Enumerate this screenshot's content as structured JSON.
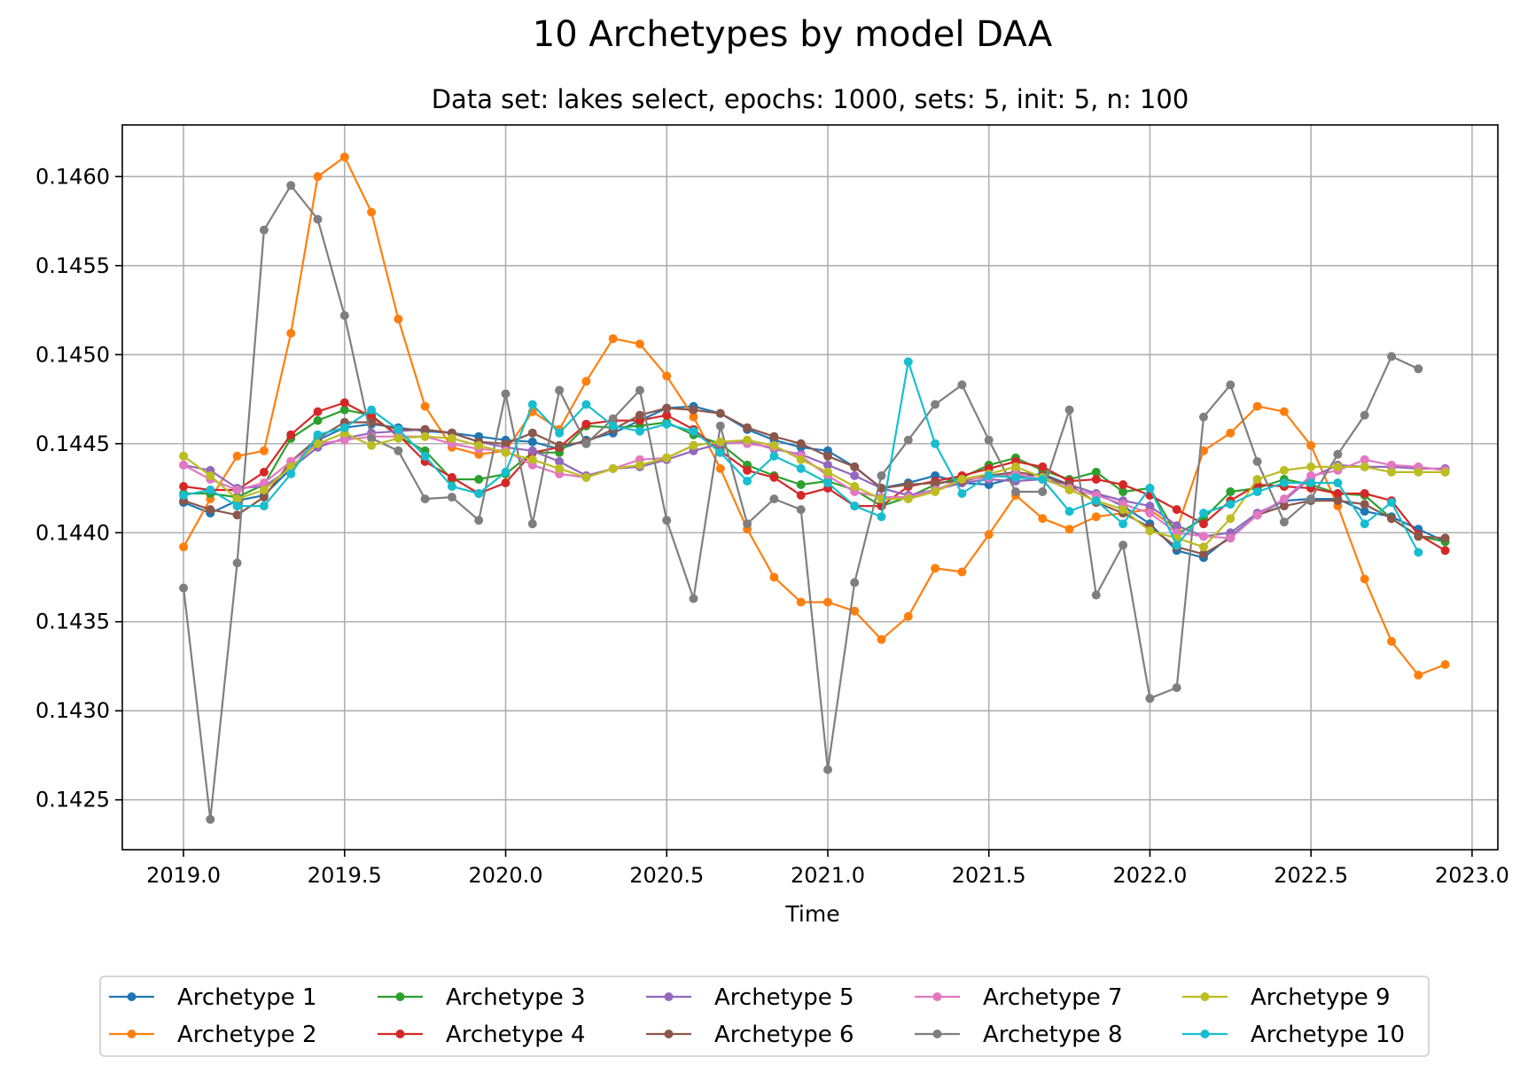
{
  "chart_data": {
    "type": "line",
    "title": "10 Archetypes by model DAA",
    "subtitle": "Data set: lakes select, epochs: 1000, sets: 5, init: 5, n: 100",
    "xlabel": "Time",
    "ylabel": "",
    "xlim": [
      2018.81,
      2023.08
    ],
    "ylim": [
      0.14222,
      0.14629
    ],
    "xticks": [
      2019.0,
      2019.5,
      2020.0,
      2020.5,
      2021.0,
      2021.5,
      2022.0,
      2022.5,
      2023.0
    ],
    "xtick_labels": [
      "2019.0",
      "2019.5",
      "2020.0",
      "2020.5",
      "2021.0",
      "2021.5",
      "2022.0",
      "2022.5",
      "2023.0"
    ],
    "yticks": [
      0.1425,
      0.143,
      0.1435,
      0.144,
      0.1445,
      0.145,
      0.1455,
      0.146
    ],
    "ytick_labels": [
      "0.1425",
      "0.1430",
      "0.1435",
      "0.1440",
      "0.1445",
      "0.1450",
      "0.1455",
      "0.1460"
    ],
    "grid": true,
    "legend_position": "bottom-center",
    "legend_columns": 5,
    "x_start": 2019.0,
    "x_step": 0.08333,
    "series": [
      {
        "name": "Archetype 1",
        "color": "#1f77b4",
        "values": [
          0.14417,
          0.14411,
          0.14418,
          0.14421,
          0.14436,
          0.14452,
          0.14459,
          0.14461,
          0.14459,
          0.14457,
          0.14456,
          0.14454,
          0.14452,
          0.14451,
          0.14447,
          0.14452,
          0.14456,
          0.14463,
          0.1447,
          0.14471,
          0.14467,
          0.14458,
          0.14452,
          0.14448,
          0.14446,
          0.14437,
          0.14425,
          0.14428,
          0.14432,
          0.14428,
          0.14427,
          0.14431,
          0.14433,
          0.14427,
          0.14422,
          0.14415,
          0.14405,
          0.1439,
          0.14386,
          0.14398,
          0.1441,
          0.14418,
          0.14419,
          0.14419,
          0.14412,
          0.14409,
          0.14402,
          0.14395
        ]
      },
      {
        "name": "Archetype 2",
        "color": "#ff7f0e",
        "values": [
          0.14392,
          0.14419,
          0.14443,
          0.14446,
          0.14512,
          0.146,
          0.14611,
          0.1458,
          0.1452,
          0.14471,
          0.14448,
          0.14444,
          0.14446,
          0.14468,
          0.14458,
          0.14485,
          0.14509,
          0.14506,
          0.14488,
          0.14465,
          0.14436,
          0.14402,
          0.14375,
          0.14361,
          0.14361,
          0.14356,
          0.1434,
          0.14353,
          0.1438,
          0.14378,
          0.14399,
          0.14421,
          0.14408,
          0.14402,
          0.14409,
          0.14411,
          0.14413,
          0.14402,
          0.14446,
          0.14456,
          0.14471,
          0.14468,
          0.14449,
          0.14415,
          0.14374,
          0.14339,
          0.1432,
          0.14326
        ]
      },
      {
        "name": "Archetype 3",
        "color": "#2ca02c",
        "values": [
          0.14422,
          0.14422,
          0.1442,
          0.14427,
          0.14453,
          0.14463,
          0.14469,
          0.14466,
          0.14454,
          0.14446,
          0.1443,
          0.1443,
          0.14433,
          0.14445,
          0.14445,
          0.1446,
          0.14459,
          0.1446,
          0.14462,
          0.14455,
          0.1445,
          0.14438,
          0.14432,
          0.14427,
          0.14429,
          0.14424,
          0.14415,
          0.1442,
          0.14427,
          0.14431,
          0.14438,
          0.14442,
          0.14435,
          0.1443,
          0.14434,
          0.14423,
          0.14425,
          0.14399,
          0.14408,
          0.14423,
          0.14425,
          0.1443,
          0.14427,
          0.14422,
          0.14421,
          0.14408,
          0.14398,
          0.14395
        ]
      },
      {
        "name": "Archetype 4",
        "color": "#d62728",
        "values": [
          0.14426,
          0.14424,
          0.14424,
          0.14434,
          0.14455,
          0.14468,
          0.14473,
          0.14465,
          0.14455,
          0.1444,
          0.14431,
          0.14422,
          0.14428,
          0.14445,
          0.14448,
          0.14461,
          0.14463,
          0.14463,
          0.14466,
          0.14458,
          0.14446,
          0.14435,
          0.14431,
          0.14421,
          0.14425,
          0.14415,
          0.14415,
          0.14426,
          0.14429,
          0.14432,
          0.14436,
          0.1444,
          0.14437,
          0.14429,
          0.1443,
          0.14427,
          0.14421,
          0.14413,
          0.14405,
          0.14418,
          0.14427,
          0.14426,
          0.14425,
          0.14422,
          0.14422,
          0.14418,
          0.14399,
          0.1439
        ]
      },
      {
        "name": "Archetype 5",
        "color": "#9467bd",
        "values": [
          0.14438,
          0.14435,
          0.14425,
          0.14426,
          0.14436,
          0.14448,
          0.14453,
          0.14456,
          0.14457,
          0.14458,
          0.14456,
          0.14451,
          0.14448,
          0.14446,
          0.1444,
          0.14432,
          0.14436,
          0.14437,
          0.14441,
          0.14446,
          0.1445,
          0.14451,
          0.14447,
          0.14444,
          0.14438,
          0.14432,
          0.14425,
          0.14421,
          0.14424,
          0.14428,
          0.1443,
          0.14429,
          0.1443,
          0.14427,
          0.14422,
          0.14418,
          0.14415,
          0.14404,
          0.14398,
          0.144,
          0.14411,
          0.14418,
          0.14431,
          0.14438,
          0.14437,
          0.14437,
          0.14436,
          0.14436
        ]
      },
      {
        "name": "Archetype 6",
        "color": "#8c564b",
        "values": [
          0.14418,
          0.14413,
          0.1441,
          0.1442,
          0.1444,
          0.14453,
          0.14462,
          0.14462,
          0.14458,
          0.14458,
          0.14456,
          0.14451,
          0.1445,
          0.14456,
          0.14449,
          0.14451,
          0.14458,
          0.14466,
          0.1447,
          0.14469,
          0.14467,
          0.14459,
          0.14454,
          0.1445,
          0.14443,
          0.14437,
          0.14425,
          0.14427,
          0.14428,
          0.14429,
          0.14432,
          0.14434,
          0.14432,
          0.14427,
          0.14417,
          0.14411,
          0.14403,
          0.14392,
          0.14388,
          0.14397,
          0.1441,
          0.14415,
          0.14418,
          0.14418,
          0.14416,
          0.14408,
          0.14398,
          0.14397
        ]
      },
      {
        "name": "Archetype 7",
        "color": "#e377c2",
        "values": [
          0.14438,
          0.1443,
          0.14424,
          0.14428,
          0.1444,
          0.1445,
          0.14452,
          0.14454,
          0.14454,
          0.14454,
          0.1445,
          0.14447,
          0.14446,
          0.14438,
          0.14433,
          0.14431,
          0.14436,
          0.14441,
          0.14442,
          0.14449,
          0.14451,
          0.1445,
          0.14448,
          0.14443,
          0.14432,
          0.14423,
          0.1442,
          0.1442,
          0.14424,
          0.1443,
          0.14431,
          0.14433,
          0.1443,
          0.14425,
          0.14421,
          0.14416,
          0.14411,
          0.144,
          0.14398,
          0.14397,
          0.1441,
          0.14419,
          0.14432,
          0.14435,
          0.14441,
          0.14438,
          0.14437,
          0.14435
        ]
      },
      {
        "name": "Archetype 8",
        "color": "#7f7f7f",
        "values": [
          0.14369,
          0.14239,
          0.14383,
          0.1457,
          0.14595,
          0.14576,
          0.14522,
          0.14453,
          0.14446,
          0.14419,
          0.1442,
          0.14407,
          0.14478,
          0.14405,
          0.1448,
          0.1445,
          0.14464,
          0.1448,
          0.14407,
          0.14363,
          0.1446,
          0.14405,
          0.14419,
          0.14413,
          0.14267,
          0.14372,
          0.14432,
          0.14452,
          0.14472,
          0.14483,
          0.14452,
          0.14423,
          0.14423,
          0.14469,
          0.14365,
          0.14393,
          0.14307,
          0.14313,
          0.14465,
          0.14483,
          0.1444,
          0.14406,
          0.14419,
          0.14444,
          0.14466,
          0.14499,
          0.14492
        ]
      },
      {
        "name": "Archetype 9",
        "color": "#bcbd22",
        "values": [
          0.14443,
          0.14432,
          0.14419,
          0.14424,
          0.14437,
          0.1445,
          0.14456,
          0.14449,
          0.14453,
          0.14454,
          0.14453,
          0.14449,
          0.14445,
          0.14441,
          0.14436,
          0.14431,
          0.14436,
          0.14438,
          0.14442,
          0.14449,
          0.14451,
          0.14452,
          0.14449,
          0.14441,
          0.14434,
          0.14426,
          0.14419,
          0.14419,
          0.14423,
          0.1443,
          0.14433,
          0.14437,
          0.14431,
          0.14424,
          0.14418,
          0.14413,
          0.14401,
          0.14397,
          0.14392,
          0.14408,
          0.1443,
          0.14435,
          0.14437,
          0.14437,
          0.14437,
          0.14434,
          0.14434,
          0.14434
        ]
      },
      {
        "name": "Archetype 10",
        "color": "#17becf",
        "values": [
          0.14421,
          0.14424,
          0.14415,
          0.14415,
          0.14433,
          0.14455,
          0.14459,
          0.14469,
          0.14458,
          0.14443,
          0.14426,
          0.14422,
          0.14434,
          0.14472,
          0.14456,
          0.14472,
          0.1446,
          0.14457,
          0.14461,
          0.14457,
          0.14445,
          0.14429,
          0.14443,
          0.14436,
          0.14428,
          0.14415,
          0.14409,
          0.14496,
          0.1445,
          0.14422,
          0.14432,
          0.14431,
          0.1443,
          0.14412,
          0.14418,
          0.14405,
          0.14425,
          0.14393,
          0.14411,
          0.14416,
          0.14423,
          0.14428,
          0.14428,
          0.14428,
          0.14405,
          0.14417,
          0.14389
        ]
      }
    ]
  }
}
